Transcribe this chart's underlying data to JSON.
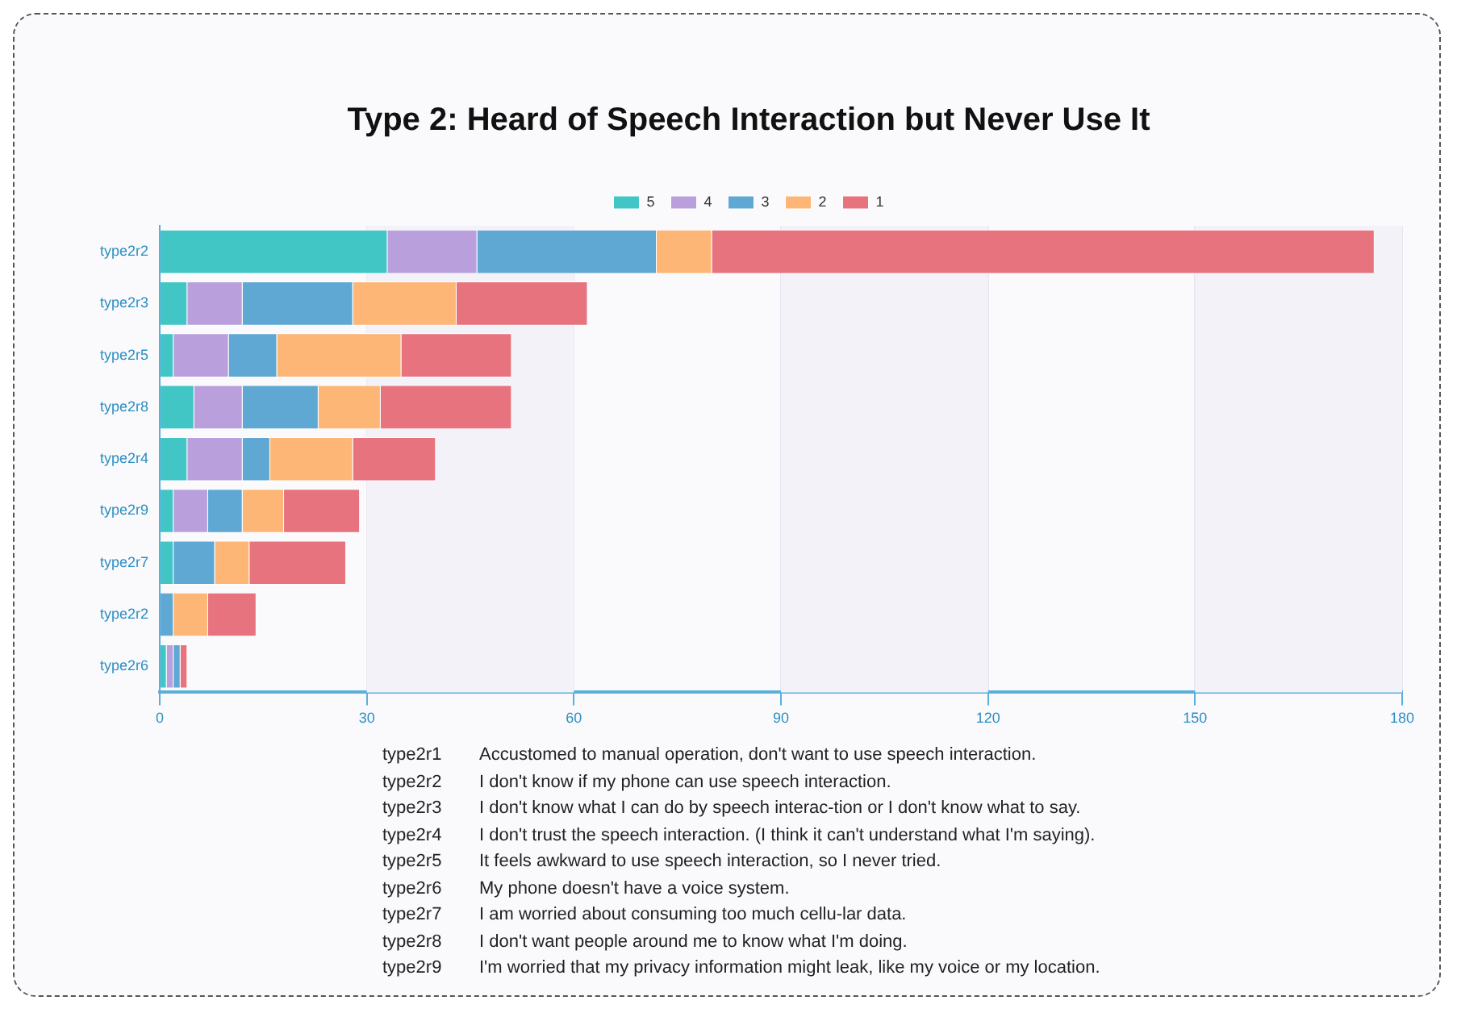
{
  "chart_data": {
    "type": "bar",
    "orientation": "horizontal",
    "stacked": true,
    "title": "Type 2: Heard of Speech Interaction but Never Use It",
    "categories": [
      "type2r2",
      "type2r3",
      "type2r5",
      "type2r8",
      "type2r4",
      "type2r9",
      "type2r7",
      "type2r2",
      "type2r6"
    ],
    "series": [
      {
        "name": "5",
        "color": "#41c5c5",
        "values": [
          33,
          4,
          2,
          5,
          4,
          2,
          2,
          0,
          1
        ]
      },
      {
        "name": "4",
        "color": "#b9a0dc",
        "values": [
          13,
          8,
          8,
          7,
          8,
          5,
          0,
          0,
          1
        ]
      },
      {
        "name": "3",
        "color": "#5fa8d3",
        "values": [
          26,
          16,
          7,
          11,
          4,
          5,
          6,
          2,
          1
        ]
      },
      {
        "name": "2",
        "color": "#fdb675",
        "values": [
          8,
          15,
          18,
          9,
          12,
          6,
          5,
          5,
          0
        ]
      },
      {
        "name": "1",
        "color": "#e6737e",
        "values": [
          96,
          19,
          16,
          19,
          12,
          11,
          14,
          7,
          1
        ]
      }
    ],
    "xlim": [
      0,
      180
    ],
    "xticks": [
      0,
      30,
      60,
      90,
      120,
      150,
      180
    ],
    "grid": "x",
    "legend": "top",
    "annotations": [
      "type2r1 Accustomed to manual operation, don't want to use speech interaction.",
      "type2r2 I don't know if my phone can use speech interaction.",
      "type2r3 I don't know what I can do by speech interac-tion or I don't know what to say.",
      "type2r4 I don't trust the speech interaction. (I think it can't understand what I'm saying).",
      "type2r5 It feels awkward to use speech interaction, so I never tried.",
      "type2r6 My phone doesn't have a voice system.",
      "type2r7 I am worried about consuming too much cellu-lar data.",
      "type2r8 I don't want people around me to know what I'm doing.",
      "type2r9 I'm worried that my privacy information might leak, like my voice or my location."
    ]
  }
}
